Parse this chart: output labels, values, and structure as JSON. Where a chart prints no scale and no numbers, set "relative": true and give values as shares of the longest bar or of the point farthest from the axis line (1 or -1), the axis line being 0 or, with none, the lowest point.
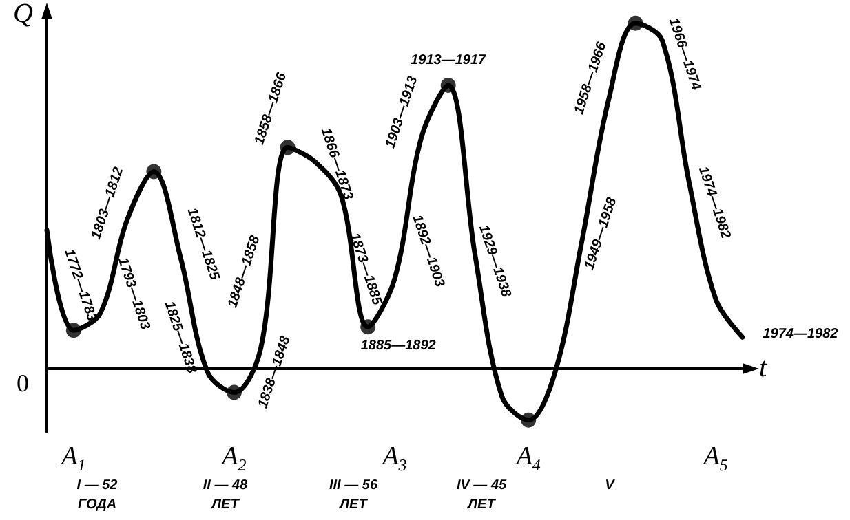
{
  "chart_data": {
    "type": "line",
    "relative": true,
    "xlabel": "t",
    "ylabel": "Q",
    "grid": false,
    "line_style": "solid",
    "categories": [
      null,
      "A$_{1}$",
      null,
      null,
      null,
      null,
      null,
      "A$_{2}$",
      null,
      null,
      null,
      null,
      null,
      "A$_{3}$",
      null,
      null,
      null,
      null,
      "A$_{4}$",
      null,
      null,
      null,
      null,
      null,
      null,
      "A$_{5}$",
      null
    ],
    "series": [
      {
        "color": "#000000",
        "marker": "none",
        "values": [
          0.4,
          0.11,
          0.16,
          0.43,
          0.57,
          0.32,
          -0.01,
          -0.07,
          0.06,
          0.64,
          0.6,
          0.5,
          0.12,
          0.26,
          0.67,
          0.82,
          0.33,
          -0.08,
          -0.15,
          -0.01,
          0.37,
          0.78,
          1,
          0.95,
          0.54,
          0.2,
          0.09
        ]
      },
      {
        "type": "scatter",
        "color": "#000000",
        "marker": "circle",
        "values": [
          null,
          0.11,
          null,
          null,
          0.57,
          null,
          null,
          -0.07,
          null,
          0.64,
          null,
          null,
          0.12,
          null,
          null,
          0.82,
          null,
          null,
          -0.15,
          null,
          null,
          null,
          1,
          null,
          null,
          null,
          null
        ]
      }
    ],
    "annotations": [
      "0",
      "1772—1783",
      "1793—1803",
      "1803—1812",
      "1812—1825",
      "1825—1838",
      "1838—1848",
      "1848—1858",
      "1858—1866",
      "1866—1873",
      "1873—1885",
      "1885—1892",
      "1892—1903",
      "1903—1913",
      "1913—1917",
      "1929—1938",
      "1949—1958",
      "1958—1966",
      "1966—1974",
      "1974—1982",
      "1974—1982",
      "I — 52\nГОДА",
      "II — 48\nЛЕТ",
      "III — 56\nЛЕТ",
      "IV — 45\nЛЕТ",
      "V"
    ]
  }
}
